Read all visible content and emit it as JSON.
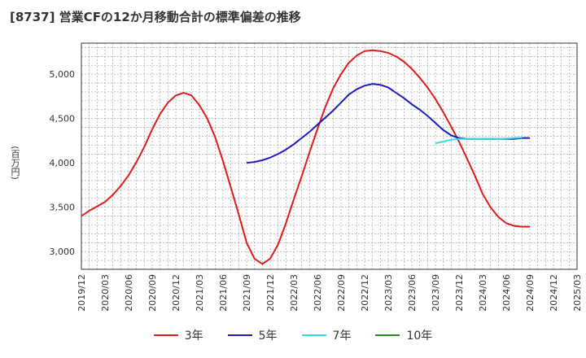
{
  "title": "[8737]  営業CFの12か月移動合計の標準偏差の推移",
  "chart_data": {
    "type": "line",
    "title": "[8737]  営業CFの12か月移動合計の標準偏差の推移",
    "ylabel": "(百万円)",
    "xlabel": "",
    "ylim": [
      2800,
      5350
    ],
    "yticks": [
      3000,
      3500,
      4000,
      4500,
      5000
    ],
    "ytick_labels": [
      "3,000",
      "3,500",
      "4,000",
      "4,500",
      "5,000"
    ],
    "xtick_labels": [
      "2019/12",
      "2020/03",
      "2020/06",
      "2020/09",
      "2020/12",
      "2021/03",
      "2021/06",
      "2021/09",
      "2021/12",
      "2022/03",
      "2022/06",
      "2022/09",
      "2022/12",
      "2023/03",
      "2023/06",
      "2023/09",
      "2023/12",
      "2024/03",
      "2024/06",
      "2024/09",
      "2024/12",
      "2025/03"
    ],
    "grid": true,
    "legend_position": "bottom",
    "series": [
      {
        "name": "3年",
        "color": "#dd1c1c",
        "start": "2019/12",
        "values": [
          3400,
          3460,
          3510,
          3560,
          3640,
          3740,
          3860,
          4010,
          4180,
          4380,
          4550,
          4680,
          4760,
          4790,
          4760,
          4650,
          4500,
          4290,
          4020,
          3720,
          3420,
          3100,
          2920,
          2860,
          2920,
          3080,
          3320,
          3590,
          3850,
          4120,
          4380,
          4630,
          4840,
          5000,
          5130,
          5210,
          5260,
          5270,
          5260,
          5240,
          5200,
          5140,
          5060,
          4960,
          4850,
          4720,
          4570,
          4410,
          4240,
          4050,
          3860,
          3650,
          3500,
          3390,
          3320,
          3290,
          3280,
          3280
        ]
      },
      {
        "name": "5年",
        "color": "#1c1cbb",
        "start": "2021/09",
        "values": [
          4000,
          4010,
          4030,
          4060,
          4100,
          4150,
          4210,
          4280,
          4350,
          4430,
          4510,
          4590,
          4680,
          4770,
          4830,
          4870,
          4890,
          4880,
          4850,
          4790,
          4730,
          4660,
          4600,
          4530,
          4450,
          4370,
          4310,
          4280,
          4270,
          4270,
          4270,
          4270,
          4270,
          4270,
          4270,
          4280,
          4280
        ]
      },
      {
        "name": "7年",
        "color": "#33dddd",
        "start": "2023/09",
        "values": [
          4220,
          4240,
          4260,
          4270,
          4270,
          4270,
          4270,
          4270,
          4270,
          4275,
          4280,
          4285
        ]
      },
      {
        "name": "10年",
        "color": "#228822",
        "start": "2024/09",
        "values": []
      }
    ]
  }
}
